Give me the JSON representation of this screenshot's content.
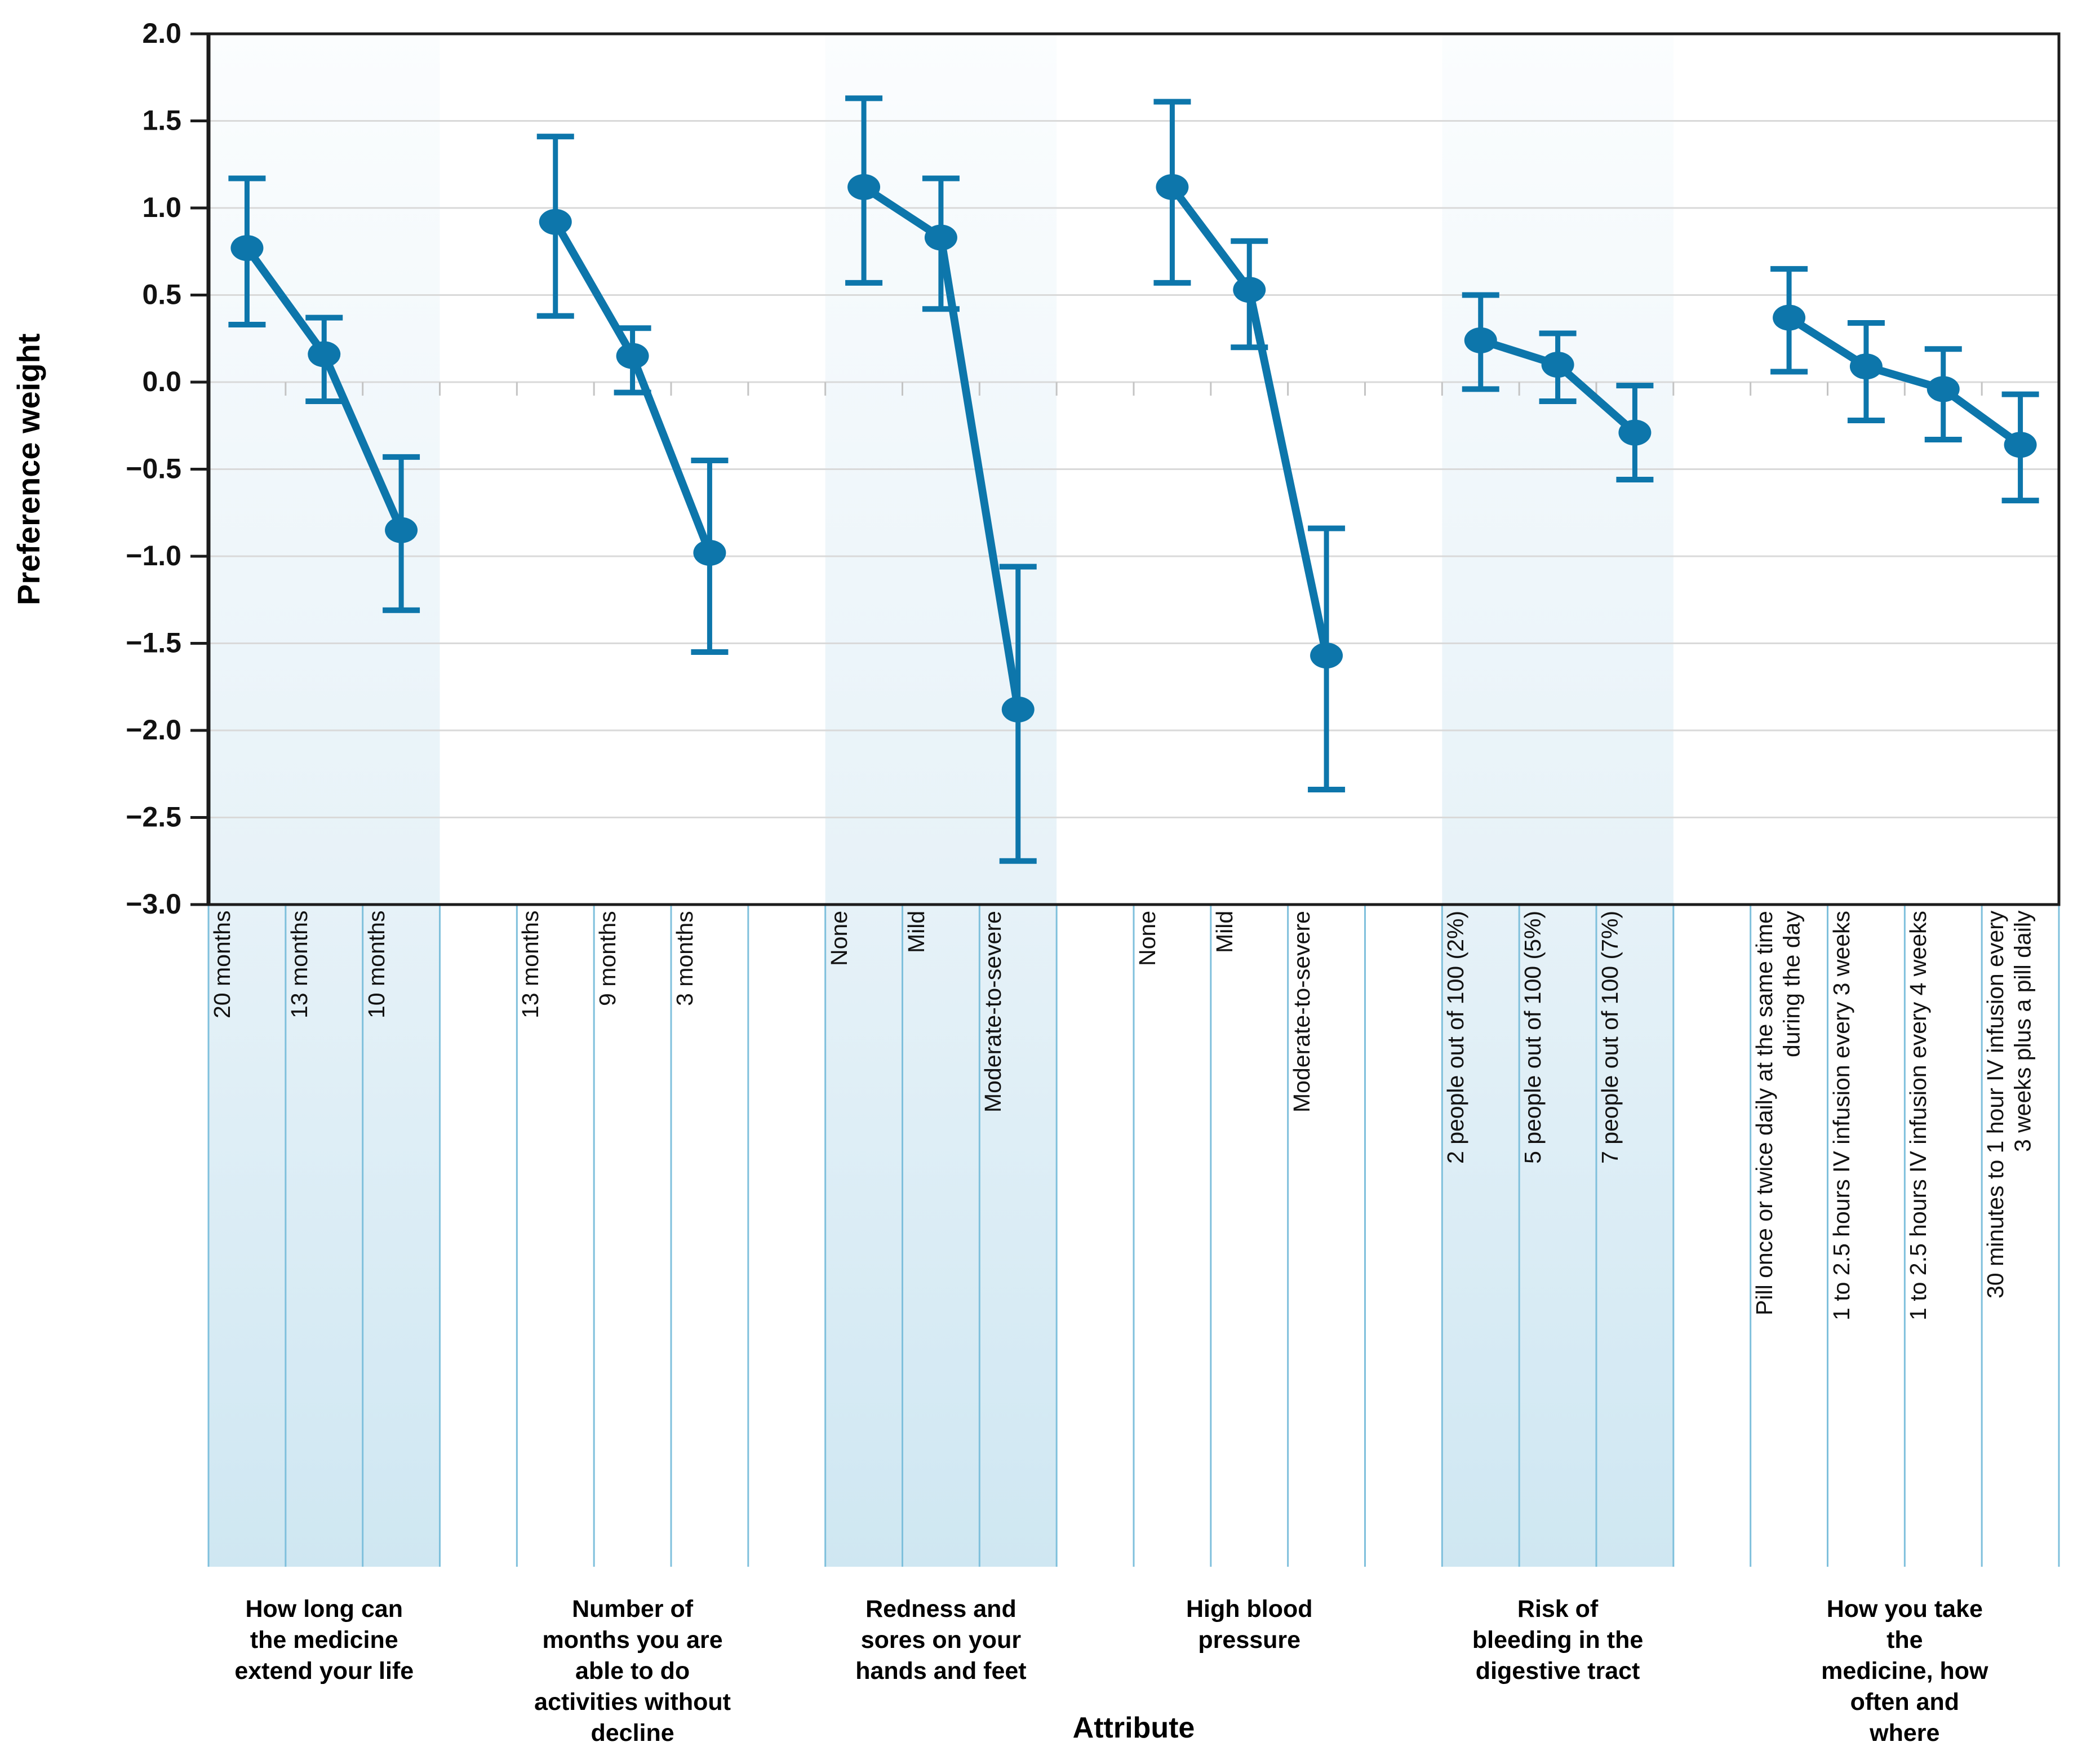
{
  "chart_data": {
    "type": "line",
    "title": "",
    "ylabel": "Preference weight",
    "xlabel": "Attribute",
    "ylim": [
      -3.0,
      2.0
    ],
    "ytick_step": 0.5,
    "ytick_labels": [
      "2.0",
      "1.5",
      "1.0",
      "0.5",
      "0.0",
      "−0.5",
      "−1.0",
      "−1.5",
      "−2.0",
      "−2.5",
      "−3.0"
    ],
    "grid": "horizontal",
    "legend": "none",
    "point_color": "#0d76ab",
    "band_top_color": "#fbfdfe",
    "band_mid_color": "#e7f2f8",
    "band_bottom_color": "#cfe7f2",
    "column_border_color": "#7fc0dc",
    "gridline_color": "#d9d9d9",
    "zero_tick_color": "#c4c4c4",
    "axis_color": "#1c1c1c",
    "groups": [
      {
        "name": "How long can\nthe medicine\nextend your life",
        "shaded": true,
        "levels": [
          {
            "label": "20 months",
            "value": 0.77,
            "ci_low": 0.33,
            "ci_high": 1.17
          },
          {
            "label": "13 months",
            "value": 0.16,
            "ci_low": -0.11,
            "ci_high": 0.37
          },
          {
            "label": "10 months",
            "value": -0.85,
            "ci_low": -1.31,
            "ci_high": -0.43
          }
        ]
      },
      {
        "name": "Number of\nmonths you are\nable to do\nactivities without\ndecline",
        "shaded": false,
        "levels": [
          {
            "label": "13 months",
            "value": 0.92,
            "ci_low": 0.38,
            "ci_high": 1.41
          },
          {
            "label": "9 months",
            "value": 0.15,
            "ci_low": -0.06,
            "ci_high": 0.31
          },
          {
            "label": "3 months",
            "value": -0.98,
            "ci_low": -1.55,
            "ci_high": -0.45
          }
        ]
      },
      {
        "name": "Redness and\nsores on your\nhands and feet",
        "shaded": true,
        "levels": [
          {
            "label": "None",
            "value": 1.12,
            "ci_low": 0.57,
            "ci_high": 1.63
          },
          {
            "label": "Mild",
            "value": 0.83,
            "ci_low": 0.42,
            "ci_high": 1.17
          },
          {
            "label": "Moderate-to-severe",
            "value": -1.88,
            "ci_low": -2.75,
            "ci_high": -1.06
          }
        ]
      },
      {
        "name": "High blood\npressure",
        "shaded": false,
        "levels": [
          {
            "label": "None",
            "value": 1.12,
            "ci_low": 0.57,
            "ci_high": 1.61
          },
          {
            "label": "Mild",
            "value": 0.53,
            "ci_low": 0.2,
            "ci_high": 0.81
          },
          {
            "label": "Moderate-to-severe",
            "value": -1.57,
            "ci_low": -2.34,
            "ci_high": -0.84
          }
        ]
      },
      {
        "name": "Risk of\nbleeding in the\ndigestive tract",
        "shaded": true,
        "levels": [
          {
            "label": "2 people out of 100 (2%)",
            "value": 0.24,
            "ci_low": -0.04,
            "ci_high": 0.5
          },
          {
            "label": "5 people out of 100 (5%)",
            "value": 0.1,
            "ci_low": -0.11,
            "ci_high": 0.28
          },
          {
            "label": "7 people out of 100 (7%)",
            "value": -0.29,
            "ci_low": -0.56,
            "ci_high": -0.02
          }
        ]
      },
      {
        "name": "How you take the\nmedicine, how\noften and where",
        "shaded": false,
        "levels": [
          {
            "label": "Pill once or twice daily at the same time\nduring the day",
            "value": 0.37,
            "ci_low": 0.06,
            "ci_high": 0.65
          },
          {
            "label": "1 to 2.5 hours IV infusion every 3 weeks",
            "value": 0.09,
            "ci_low": -0.22,
            "ci_high": 0.34
          },
          {
            "label": "1 to 2.5 hours IV infusion every 4 weeks",
            "value": -0.04,
            "ci_low": -0.33,
            "ci_high": 0.19
          },
          {
            "label": "30 minutes to 1 hour IV infusion every\n3 weeks plus a pill daily",
            "value": -0.36,
            "ci_low": -0.68,
            "ci_high": -0.07
          }
        ]
      }
    ]
  }
}
